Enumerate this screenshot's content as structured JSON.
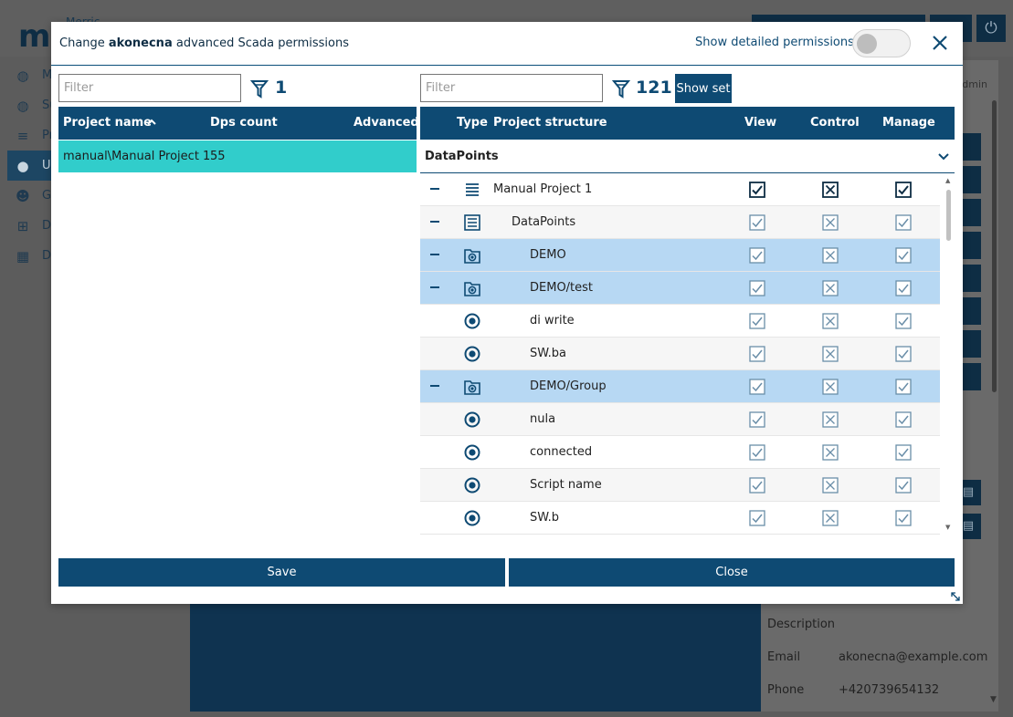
{
  "background": {
    "logo": "m",
    "logo_sub": "Merric",
    "sidebar": [
      {
        "label": "M",
        "icon": "globe-icon"
      },
      {
        "label": "Su",
        "icon": "globe-icon"
      },
      {
        "label": "Pr",
        "icon": "list-icon"
      },
      {
        "label": "Us",
        "icon": "user-icon",
        "active": true
      },
      {
        "label": "Gr",
        "icon": "users-icon"
      },
      {
        "label": "Da",
        "icon": "hierarchy-icon"
      },
      {
        "label": "Da",
        "icon": "calendar-icon"
      }
    ],
    "panel_tag": "al_admin",
    "details": [
      {
        "key": "Description",
        "value": ""
      },
      {
        "key": "Email",
        "value": "akonecna@example.com"
      },
      {
        "key": "Phone",
        "value": "+420739654132"
      }
    ]
  },
  "modal": {
    "title_prefix": "Change ",
    "title_user": "akonecna",
    "title_suffix": " advanced Scada permissions",
    "detailed_label": "Show detailed permissions",
    "detailed_on": false,
    "left": {
      "filter_placeholder": "Filter",
      "count": "1",
      "columns": [
        "Project name",
        "Dps count",
        "Advanced"
      ],
      "rows": [
        {
          "name": "manual\\Manual Project 1",
          "dps": "55",
          "advanced": ""
        }
      ]
    },
    "right": {
      "filter_placeholder": "Filter",
      "count": "121",
      "show_set_label": "Show set",
      "columns": [
        "Type",
        "Project structure",
        "View",
        "Control",
        "Manage"
      ],
      "group_label": "DataPoints",
      "rows": [
        {
          "label": "Manual Project 1",
          "type": "project-icon",
          "indent": 0,
          "collapse": true,
          "state": "normal"
        },
        {
          "label": "DataPoints",
          "type": "folder-list-icon",
          "indent": 1,
          "collapse": true,
          "state": "alt"
        },
        {
          "label": "DEMO",
          "type": "device-folder-icon",
          "indent": 2,
          "collapse": true,
          "state": "highlight"
        },
        {
          "label": "DEMO/test",
          "type": "device-folder-icon",
          "indent": 2,
          "collapse": true,
          "state": "highlight"
        },
        {
          "label": "di write",
          "type": "datapoint-icon",
          "indent": 2,
          "collapse": false,
          "state": "normal"
        },
        {
          "label": "SW.ba",
          "type": "datapoint-icon",
          "indent": 2,
          "collapse": false,
          "state": "alt"
        },
        {
          "label": "DEMO/Group",
          "type": "device-folder-icon",
          "indent": 2,
          "collapse": true,
          "state": "highlight"
        },
        {
          "label": "nula",
          "type": "datapoint-icon",
          "indent": 2,
          "collapse": false,
          "state": "alt"
        },
        {
          "label": "connected",
          "type": "datapoint-icon",
          "indent": 2,
          "collapse": false,
          "state": "normal"
        },
        {
          "label": "Script name",
          "type": "datapoint-icon",
          "indent": 2,
          "collapse": false,
          "state": "alt"
        },
        {
          "label": "SW.b",
          "type": "datapoint-icon",
          "indent": 2,
          "collapse": false,
          "state": "normal"
        }
      ]
    },
    "save_label": "Save",
    "close_label": "Close"
  }
}
